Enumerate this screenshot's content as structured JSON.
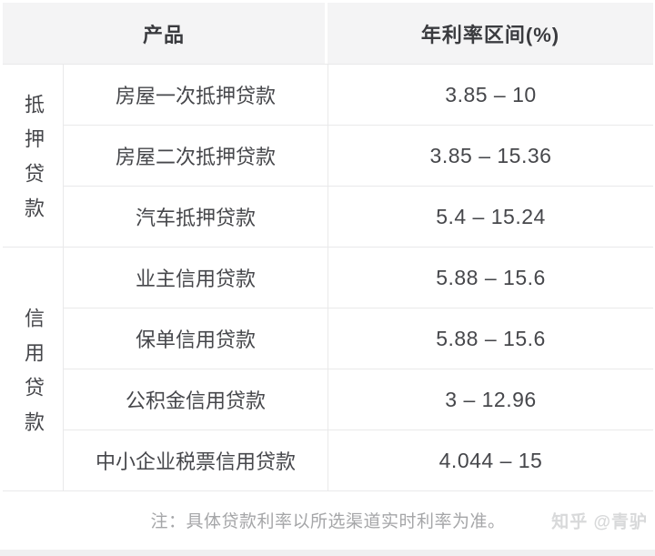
{
  "table": {
    "header": {
      "product_label": "产品",
      "rate_label": "年利率区间(%)"
    },
    "groups": [
      {
        "label": "抵押贷款",
        "rows": [
          {
            "product": "房屋一次抵押贷款",
            "rate": "3.85 – 10"
          },
          {
            "product": "房屋二次抵押贷款",
            "rate": "3.85 – 15.36"
          },
          {
            "product": "汽车抵押贷款",
            "rate": "5.4 – 15.24"
          }
        ]
      },
      {
        "label": "信用贷款",
        "rows": [
          {
            "product": "业主信用贷款",
            "rate": "5.88 – 15.6"
          },
          {
            "product": "保单信用贷款",
            "rate": "5.88 – 15.6"
          },
          {
            "product": "公积金信用贷款",
            "rate": "3 – 12.96"
          },
          {
            "product": "中小企业税票信用贷款",
            "rate": "4.044 – 15"
          }
        ]
      }
    ],
    "note": "注：具体贷款利率以所选渠道实时利率为准。",
    "watermark": "知乎 @青驴"
  },
  "colors": {
    "header_bg": "#f4f4f5",
    "border": "#e9e9ea",
    "header_text": "#3a3b3f",
    "body_text": "#46474b",
    "note_text": "#a5a6a8",
    "watermark_text": "#d8d9da",
    "bottom_band": "#f0f0f1"
  },
  "chart_data": {
    "type": "table",
    "title": "",
    "columns": [
      "",
      "产品",
      "年利率区间(%)"
    ],
    "rows": [
      [
        "抵押贷款",
        "房屋一次抵押贷款",
        "3.85 – 10"
      ],
      [
        "抵押贷款",
        "房屋二次抵押贷款",
        "3.85 – 15.36"
      ],
      [
        "抵押贷款",
        "汽车抵押贷款",
        "5.4 – 15.24"
      ],
      [
        "信用贷款",
        "业主信用贷款",
        "5.88 – 15.6"
      ],
      [
        "信用贷款",
        "保单信用贷款",
        "5.88 – 15.6"
      ],
      [
        "信用贷款",
        "公积金信用贷款",
        "3 – 12.96"
      ],
      [
        "信用贷款",
        "中小企业税票信用贷款",
        "4.044 – 15"
      ]
    ],
    "rate_ranges_numeric": [
      [
        3.85,
        10
      ],
      [
        3.85,
        15.36
      ],
      [
        5.4,
        15.24
      ],
      [
        5.88,
        15.6
      ],
      [
        5.88,
        15.6
      ],
      [
        3,
        12.96
      ],
      [
        4.044,
        15
      ]
    ],
    "note": "注：具体贷款利率以所选渠道实时利率为准。"
  }
}
